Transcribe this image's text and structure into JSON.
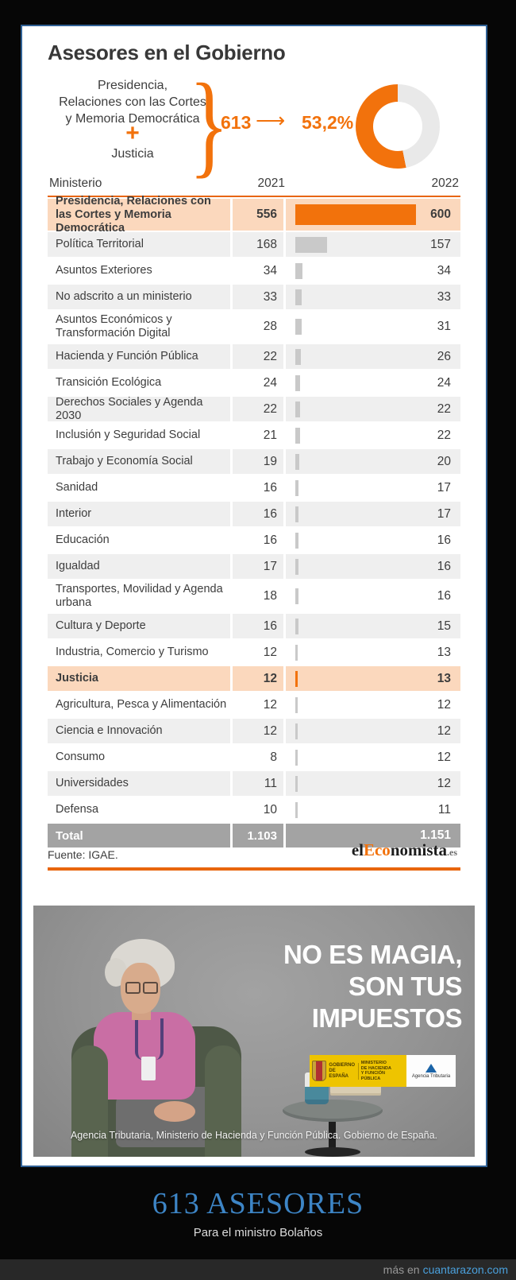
{
  "meme": {
    "title": "613 ASESORES",
    "subtitle": "Para el ministro Bolaños",
    "credit_prefix": "más en",
    "credit_site": "cuantarazon.com",
    "colors": {
      "title_blue": "#3d85c6",
      "link_blue": "#4aa0dc",
      "background": "#060606"
    }
  },
  "infographic": {
    "title": "Asesores en el Gobierno",
    "source": "Fuente: IGAE.",
    "brand": {
      "part1": "el",
      "part2": "Eco",
      "part3": "nomista",
      "tld": ".es"
    },
    "colors": {
      "orange": "#f2720c",
      "peach": "#fbd8bd",
      "row_gray": "#efefef",
      "total_gray": "#a3a3a3",
      "donut_gray": "#e9e9e9",
      "rule_orange": "#e8650d"
    },
    "summary": {
      "group_lines": [
        "Presidencia,",
        "Relaciones con las Cortes",
        "y Memoria Democrática"
      ],
      "plus": "+",
      "second_item": "Justicia",
      "total": "613",
      "arrow": "⟶",
      "percent_label": "53,2%",
      "percent_value": 53.2
    },
    "table": {
      "col_ministry": "Ministerio",
      "col_2021": "2021",
      "col_2022": "2022",
      "rows": [
        {
          "label": "Presidencia, Relaciones con las Cortes y Memoria Democrática",
          "v2021": 556,
          "v2022": 600,
          "highlight": true,
          "twoline": true
        },
        {
          "label": "Política Territorial",
          "v2021": 168,
          "v2022": 157,
          "highlight": false,
          "twoline": false
        },
        {
          "label": "Asuntos Exteriores",
          "v2021": 34,
          "v2022": 34,
          "highlight": false,
          "twoline": false
        },
        {
          "label": "No adscrito a un ministerio",
          "v2021": 33,
          "v2022": 33,
          "highlight": false,
          "twoline": false
        },
        {
          "label": "Asuntos Económicos y Transformación Digital",
          "v2021": 28,
          "v2022": 31,
          "highlight": false,
          "twoline": true
        },
        {
          "label": "Hacienda y Función Pública",
          "v2021": 22,
          "v2022": 26,
          "highlight": false,
          "twoline": false
        },
        {
          "label": "Transición Ecológica",
          "v2021": 24,
          "v2022": 24,
          "highlight": false,
          "twoline": false
        },
        {
          "label": "Derechos Sociales y Agenda 2030",
          "v2021": 22,
          "v2022": 22,
          "highlight": false,
          "twoline": false
        },
        {
          "label": "Inclusión y Seguridad Social",
          "v2021": 21,
          "v2022": 22,
          "highlight": false,
          "twoline": false
        },
        {
          "label": "Trabajo y Economía Social",
          "v2021": 19,
          "v2022": 20,
          "highlight": false,
          "twoline": false
        },
        {
          "label": "Sanidad",
          "v2021": 16,
          "v2022": 17,
          "highlight": false,
          "twoline": false
        },
        {
          "label": "Interior",
          "v2021": 16,
          "v2022": 17,
          "highlight": false,
          "twoline": false
        },
        {
          "label": "Educación",
          "v2021": 16,
          "v2022": 16,
          "highlight": false,
          "twoline": false
        },
        {
          "label": "Igualdad",
          "v2021": 17,
          "v2022": 16,
          "highlight": false,
          "twoline": false
        },
        {
          "label": "Transportes, Movilidad y Agenda urbana",
          "v2021": 18,
          "v2022": 16,
          "highlight": false,
          "twoline": true
        },
        {
          "label": "Cultura y Deporte",
          "v2021": 16,
          "v2022": 15,
          "highlight": false,
          "twoline": false
        },
        {
          "label": "Industria, Comercio y Turismo",
          "v2021": 12,
          "v2022": 13,
          "highlight": false,
          "twoline": false
        },
        {
          "label": "Justicia",
          "v2021": 12,
          "v2022": 13,
          "highlight": true,
          "twoline": false
        },
        {
          "label": "Agricultura, Pesca y Alimentación",
          "v2021": 12,
          "v2022": 12,
          "highlight": false,
          "twoline": false
        },
        {
          "label": "Ciencia e Innovación",
          "v2021": 12,
          "v2022": 12,
          "highlight": false,
          "twoline": false
        },
        {
          "label": "Consumo",
          "v2021": 8,
          "v2022": 12,
          "highlight": false,
          "twoline": false
        },
        {
          "label": "Universidades",
          "v2021": 11,
          "v2022": 12,
          "highlight": false,
          "twoline": false
        },
        {
          "label": "Defensa",
          "v2021": 10,
          "v2022": 11,
          "highlight": false,
          "twoline": false
        }
      ],
      "total_row": {
        "label": "Total",
        "v2021": "1.103",
        "v2022": "1.151"
      }
    }
  },
  "ad": {
    "headline_lines": [
      "NO ES MAGIA,",
      "SON TUS",
      "IMPUESTOS"
    ],
    "caption": "Agencia Tributaria, Ministerio de Hacienda y Función Pública. Gobierno de España.",
    "logo_gobierno_lines": [
      "GOBIERNO",
      "DE ESPAÑA"
    ],
    "logo_ministerio_lines": [
      "MINISTERIO",
      "DE HACIENDA",
      "Y FUNCIÓN PÚBLICA"
    ],
    "logo_agencia": "Agencia Tributaria"
  },
  "chart_data": [
    {
      "type": "pie",
      "style": "donut",
      "title": "Asesores en el Gobierno — cuota de Presidencia, Relaciones con las Cortes y Memoria Democrática + Justicia",
      "labels": [
        "Presidencia, Relaciones con las Cortes y Memoria Democrática + Justicia",
        "Resto de ministerios"
      ],
      "values": [
        53.2,
        46.8
      ],
      "annotations": [
        "613 ⟶ 53,2%"
      ],
      "colors": [
        "#f2720c",
        "#e9e9e9"
      ],
      "start_angle_deg": 0,
      "direction": "counterclockwise"
    },
    {
      "type": "bar",
      "title": "Asesores por ministerio",
      "orientation": "horizontal",
      "categories": [
        "Presidencia, Relaciones con las Cortes y Memoria Democrática",
        "Política Territorial",
        "Asuntos Exteriores",
        "No adscrito a un ministerio",
        "Asuntos Económicos y Transformación Digital",
        "Hacienda y Función Pública",
        "Transición Ecológica",
        "Derechos Sociales y Agenda 2030",
        "Inclusión y Seguridad Social",
        "Trabajo y Economía Social",
        "Sanidad",
        "Interior",
        "Educación",
        "Igualdad",
        "Transportes, Movilidad y Agenda urbana",
        "Cultura y Deporte",
        "Industria, Comercio y Turismo",
        "Justicia",
        "Agricultura, Pesca y Alimentación",
        "Ciencia e Innovación",
        "Consumo",
        "Universidades",
        "Defensa"
      ],
      "series": [
        {
          "name": "2021",
          "values": [
            556,
            168,
            34,
            33,
            28,
            22,
            24,
            22,
            21,
            19,
            16,
            16,
            16,
            17,
            18,
            16,
            12,
            12,
            12,
            12,
            8,
            11,
            10
          ]
        },
        {
          "name": "2022",
          "values": [
            600,
            157,
            34,
            33,
            31,
            26,
            24,
            22,
            22,
            20,
            17,
            17,
            16,
            16,
            16,
            15,
            13,
            13,
            12,
            12,
            12,
            12,
            11
          ]
        }
      ],
      "totals": {
        "2021": "1.103",
        "2022": "1.151"
      },
      "highlighted_categories": [
        "Presidencia, Relaciones con las Cortes y Memoria Democrática",
        "Justicia"
      ],
      "bars_depict": "2022",
      "xlim": [
        0,
        600
      ],
      "source": "Fuente: IGAE."
    }
  ]
}
